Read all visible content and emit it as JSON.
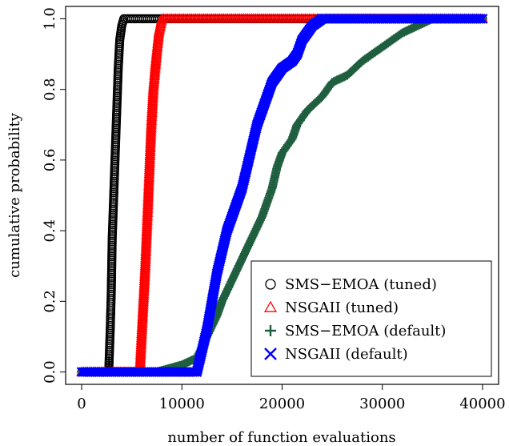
{
  "chart_data": {
    "type": "scatter",
    "title": "",
    "xlabel": "number of function evaluations",
    "ylabel": "cumulative probability",
    "xlim": [
      -1600,
      41600
    ],
    "ylim": [
      -0.035,
      1.035
    ],
    "x_ticks": [
      0,
      10000,
      20000,
      30000,
      40000
    ],
    "x_tick_labels": [
      "0",
      "10000",
      "20000",
      "30000",
      "40000"
    ],
    "y_ticks": [
      0.0,
      0.2,
      0.4,
      0.6,
      0.8,
      1.0
    ],
    "y_tick_labels": [
      "0.0",
      "0.2",
      "0.4",
      "0.6",
      "0.8",
      "1.0"
    ],
    "grid": false,
    "legend_position": "bottom-right",
    "series": [
      {
        "name": "SMS−EMOA (tuned)",
        "marker": "circle",
        "color": "#000000",
        "points": [
          [
            0,
            0
          ],
          [
            2700,
            0
          ],
          [
            2750,
            0.04
          ],
          [
            2850,
            0.12
          ],
          [
            2950,
            0.22
          ],
          [
            3000,
            0.3
          ],
          [
            3050,
            0.38
          ],
          [
            3150,
            0.46
          ],
          [
            3250,
            0.54
          ],
          [
            3350,
            0.62
          ],
          [
            3450,
            0.7
          ],
          [
            3550,
            0.78
          ],
          [
            3650,
            0.86
          ],
          [
            3800,
            0.94
          ],
          [
            4000,
            0.98
          ],
          [
            4200,
            1.0
          ],
          [
            40000,
            1.0
          ]
        ]
      },
      {
        "name": "NSGAII (tuned)",
        "marker": "triangle",
        "color": "#ff0000",
        "points": [
          [
            0,
            0
          ],
          [
            5800,
            0
          ],
          [
            5900,
            0.06
          ],
          [
            6050,
            0.14
          ],
          [
            6200,
            0.22
          ],
          [
            6350,
            0.3
          ],
          [
            6500,
            0.4
          ],
          [
            6650,
            0.5
          ],
          [
            6800,
            0.6
          ],
          [
            6950,
            0.7
          ],
          [
            7150,
            0.8
          ],
          [
            7400,
            0.88
          ],
          [
            7700,
            0.96
          ],
          [
            8000,
            1.0
          ],
          [
            40000,
            1.0
          ]
        ]
      },
      {
        "name": "SMS−EMOA (default)",
        "marker": "plus",
        "color": "#1f5f3f",
        "points": [
          [
            0,
            0
          ],
          [
            7500,
            0
          ],
          [
            10000,
            0.02
          ],
          [
            11500,
            0.04
          ],
          [
            12500,
            0.1
          ],
          [
            13500,
            0.16
          ],
          [
            14000,
            0.2
          ],
          [
            15000,
            0.26
          ],
          [
            16000,
            0.32
          ],
          [
            17000,
            0.38
          ],
          [
            18000,
            0.44
          ],
          [
            19000,
            0.52
          ],
          [
            19500,
            0.58
          ],
          [
            20000,
            0.62
          ],
          [
            21000,
            0.66
          ],
          [
            21500,
            0.7
          ],
          [
            22500,
            0.74
          ],
          [
            24000,
            0.78
          ],
          [
            25000,
            0.82
          ],
          [
            26500,
            0.84
          ],
          [
            28000,
            0.88
          ],
          [
            29000,
            0.9
          ],
          [
            30000,
            0.92
          ],
          [
            31000,
            0.94
          ],
          [
            32000,
            0.96
          ],
          [
            33500,
            0.98
          ],
          [
            35000,
            1.0
          ],
          [
            40000,
            1.0
          ]
        ]
      },
      {
        "name": "NSGAII (default)",
        "marker": "x",
        "color": "#0000ff",
        "points": [
          [
            0,
            0
          ],
          [
            11500,
            0
          ],
          [
            12000,
            0.06
          ],
          [
            12500,
            0.12
          ],
          [
            13000,
            0.2
          ],
          [
            13500,
            0.28
          ],
          [
            14000,
            0.34
          ],
          [
            14500,
            0.4
          ],
          [
            15000,
            0.44
          ],
          [
            15500,
            0.48
          ],
          [
            16000,
            0.52
          ],
          [
            16500,
            0.58
          ],
          [
            17000,
            0.64
          ],
          [
            17500,
            0.7
          ],
          [
            18000,
            0.74
          ],
          [
            18500,
            0.78
          ],
          [
            19000,
            0.82
          ],
          [
            19500,
            0.84
          ],
          [
            20000,
            0.86
          ],
          [
            21000,
            0.88
          ],
          [
            21500,
            0.9
          ],
          [
            22000,
            0.94
          ],
          [
            23000,
            0.98
          ],
          [
            24000,
            1.0
          ],
          [
            40000,
            1.0
          ]
        ]
      }
    ]
  }
}
